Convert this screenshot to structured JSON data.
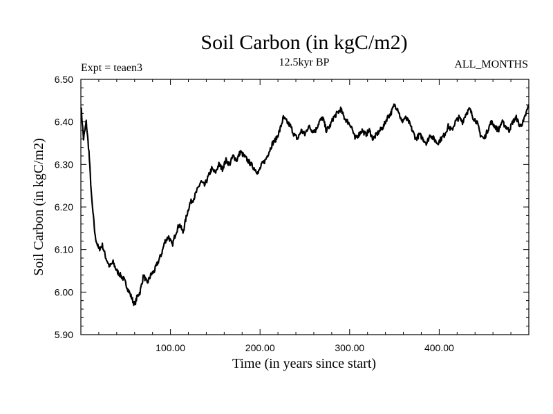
{
  "chart_data": {
    "type": "line",
    "title": "Soil Carbon (in kgC/m2)",
    "subtitle": "12.5kyr BP",
    "experiment_label": "Expt = teaen3",
    "months_label": "ALL_MONTHS",
    "xlabel": "Time (in years since start)",
    "ylabel": "Soil Carbon (in kgC/m2)",
    "xlim": [
      0,
      500
    ],
    "ylim": [
      5.9,
      6.5
    ],
    "x_tick_values": [
      100,
      200,
      300,
      400
    ],
    "x_tick_labels": [
      "100.00",
      "200.00",
      "300.00",
      "400.00"
    ],
    "y_tick_values": [
      5.9,
      6.0,
      6.1,
      6.2,
      6.3,
      6.4,
      6.5
    ],
    "y_tick_labels": [
      "5.90",
      "6.00",
      "6.10",
      "6.20",
      "6.30",
      "6.40",
      "6.50"
    ],
    "grid": false,
    "series": [
      {
        "name": "Soil Carbon",
        "x": [
          0,
          3,
          6,
          9,
          12,
          16,
          20,
          24,
          28,
          32,
          36,
          40,
          44,
          48,
          52,
          56,
          60,
          63,
          66,
          70,
          74,
          78,
          82,
          86,
          90,
          94,
          98,
          102,
          106,
          110,
          114,
          118,
          122,
          126,
          130,
          134,
          138,
          142,
          146,
          150,
          154,
          158,
          162,
          166,
          170,
          174,
          178,
          182,
          186,
          190,
          194,
          198,
          202,
          206,
          210,
          214,
          218,
          222,
          226,
          230,
          234,
          238,
          242,
          246,
          250,
          254,
          258,
          262,
          266,
          270,
          274,
          278,
          282,
          286,
          290,
          294,
          298,
          302,
          306,
          310,
          314,
          318,
          322,
          326,
          330,
          334,
          338,
          342,
          346,
          350,
          354,
          358,
          362,
          366,
          370,
          374,
          378,
          382,
          386,
          390,
          394,
          398,
          402,
          406,
          410,
          414,
          418,
          422,
          426,
          430,
          434,
          438,
          442,
          446,
          450,
          454,
          458,
          462,
          466,
          470,
          474,
          478,
          482,
          486,
          490,
          494,
          497,
          500
        ],
        "y": [
          6.44,
          6.36,
          6.4,
          6.33,
          6.22,
          6.13,
          6.1,
          6.11,
          6.08,
          6.06,
          6.07,
          6.05,
          6.04,
          6.03,
          6.01,
          5.99,
          5.97,
          5.99,
          6.0,
          6.04,
          6.02,
          6.04,
          6.05,
          6.07,
          6.09,
          6.12,
          6.13,
          6.11,
          6.14,
          6.16,
          6.14,
          6.18,
          6.21,
          6.22,
          6.24,
          6.26,
          6.25,
          6.27,
          6.29,
          6.28,
          6.3,
          6.29,
          6.31,
          6.3,
          6.32,
          6.31,
          6.33,
          6.32,
          6.31,
          6.3,
          6.29,
          6.28,
          6.3,
          6.31,
          6.33,
          6.35,
          6.36,
          6.38,
          6.41,
          6.4,
          6.39,
          6.37,
          6.36,
          6.38,
          6.37,
          6.39,
          6.38,
          6.38,
          6.4,
          6.41,
          6.38,
          6.39,
          6.41,
          6.42,
          6.43,
          6.41,
          6.4,
          6.39,
          6.36,
          6.37,
          6.38,
          6.37,
          6.38,
          6.36,
          6.37,
          6.38,
          6.39,
          6.41,
          6.42,
          6.44,
          6.43,
          6.4,
          6.41,
          6.4,
          6.38,
          6.36,
          6.37,
          6.36,
          6.35,
          6.37,
          6.36,
          6.35,
          6.36,
          6.37,
          6.39,
          6.38,
          6.4,
          6.41,
          6.4,
          6.42,
          6.43,
          6.41,
          6.4,
          6.37,
          6.36,
          6.38,
          6.4,
          6.39,
          6.38,
          6.4,
          6.39,
          6.38,
          6.4,
          6.41,
          6.39,
          6.4,
          6.42,
          6.44
        ]
      }
    ]
  }
}
